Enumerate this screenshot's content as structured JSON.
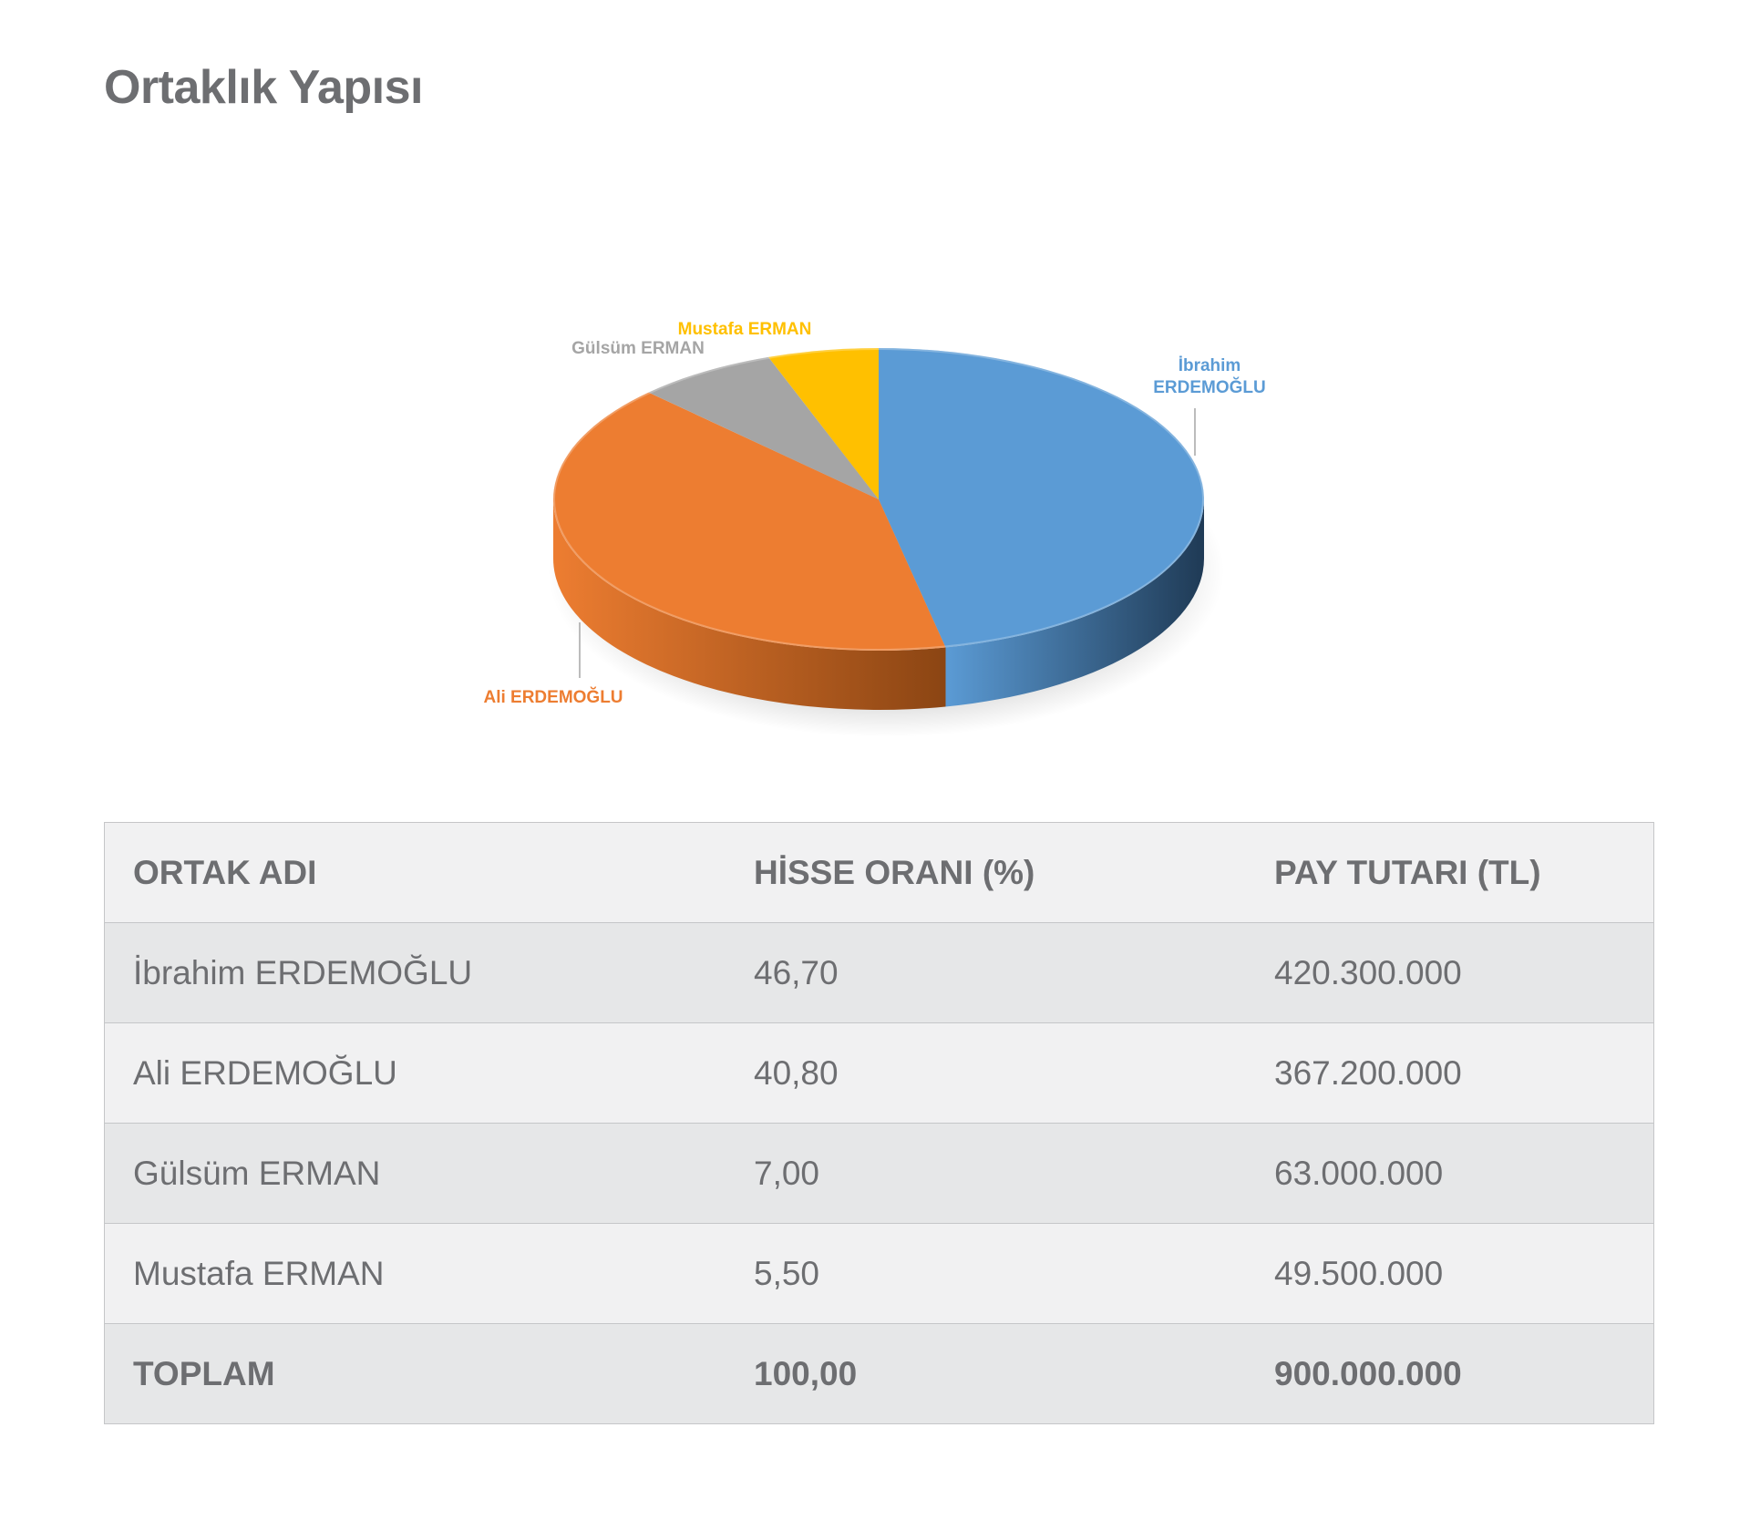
{
  "page": {
    "title": "Ortaklık Yapısı"
  },
  "chart_data": {
    "type": "pie",
    "title": "",
    "slices": [
      {
        "label": "İbrahim ERDEMOĞLU",
        "label_lines": [
          "İbrahim",
          "ERDEMOĞLU"
        ],
        "value": 46.7,
        "color": "#5b9bd5",
        "dark": "#1f3a55"
      },
      {
        "label": "Ali ERDEMOĞLU",
        "label_lines": [
          "Ali ERDEMOĞLU"
        ],
        "value": 40.8,
        "color": "#ed7d31",
        "dark": "#8b4513"
      },
      {
        "label": "Gülsüm ERMAN",
        "label_lines": [
          "Gülsüm ERMAN"
        ],
        "value": 7.0,
        "color": "#a5a5a5",
        "dark": "#666666"
      },
      {
        "label": "Mustafa ERMAN",
        "label_lines": [
          "Mustafa ERMAN"
        ],
        "value": 5.5,
        "color": "#ffc000",
        "dark": "#a07800"
      }
    ]
  },
  "table": {
    "headers": [
      "ORTAK ADI",
      "HİSSE ORANI (%)",
      "PAY TUTARI (TL)"
    ],
    "rows": [
      [
        "İbrahim ERDEMOĞLU",
        "46,70",
        "420.300.000"
      ],
      [
        "Ali ERDEMOĞLU",
        "40,80",
        "367.200.000"
      ],
      [
        "Gülsüm ERMAN",
        "7,00",
        "63.000.000"
      ],
      [
        "Mustafa ERMAN",
        "5,50",
        "49.500.000"
      ]
    ],
    "total": [
      "TOPLAM",
      "100,00",
      "900.000.000"
    ]
  }
}
